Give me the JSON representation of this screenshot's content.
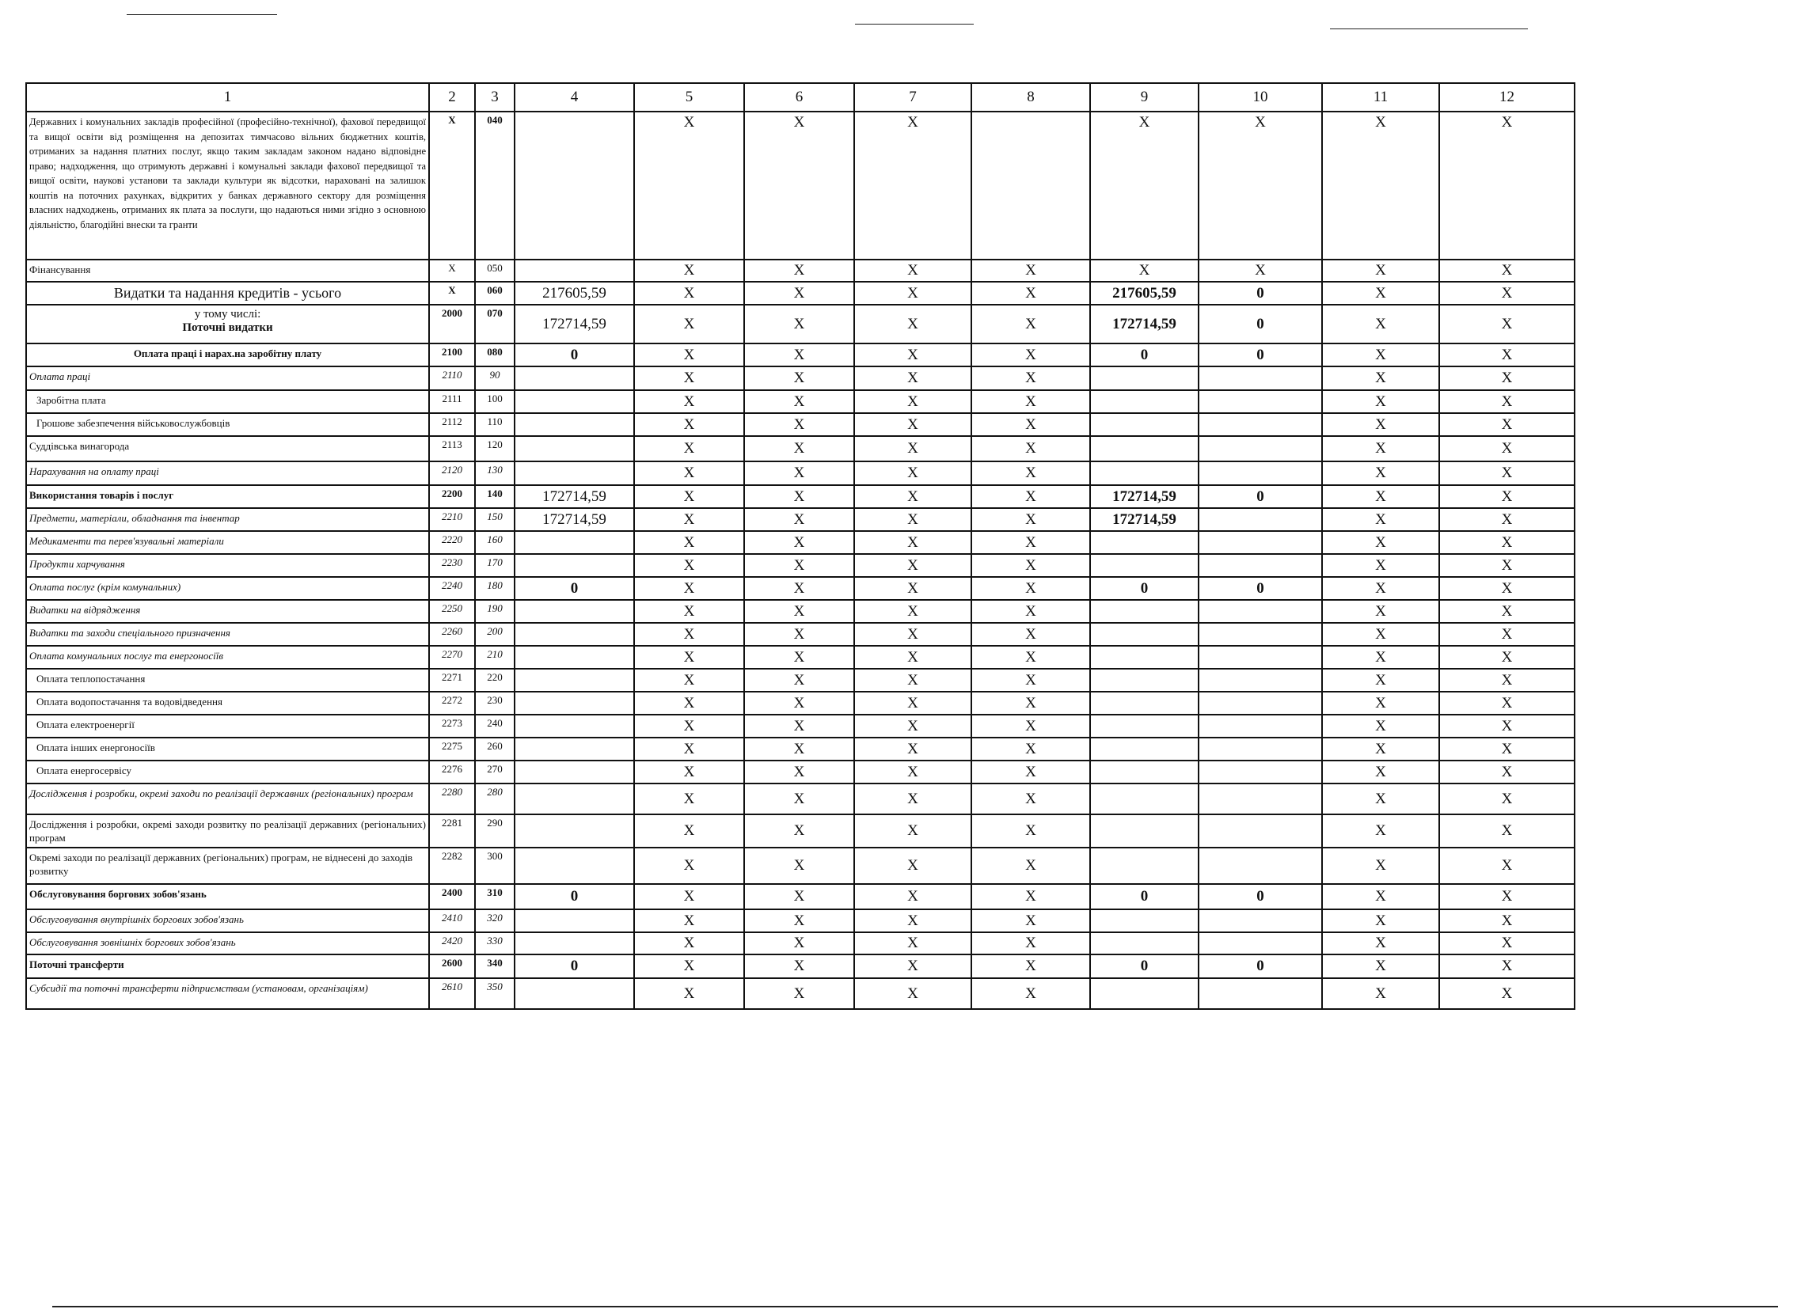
{
  "header": [
    "1",
    "2",
    "3",
    "4",
    "5",
    "6",
    "7",
    "8",
    "9",
    "10",
    "11",
    "12"
  ],
  "rows": [
    {
      "label": "Державних і комунальних закладів професійної (професійно-технічної), фахової передвищої та вищої освіти від розміщення на депозитах тимчасово вільних бюджетних коштів, отриманих за надання платних послуг, якщо таким закладам законом надано відповідне право; надходження, що отримують державні і комунальні заклади фахової передвищої та вищої освіти, наукові установи та заклади культури як відсотки, нараховані на залишок коштів на поточних рахунках, відкритих у банках державного сектору для розміщення власних надходжень, отриманих як плата за послуги, що надаються ними згідно з основною діяльністю, благодійні внески та гранти",
      "style": "justify",
      "c2": "X",
      "c3": "040",
      "vals": [
        "",
        "X",
        "X",
        "X",
        "",
        "X",
        "X",
        "X",
        "X"
      ]
    },
    {
      "label": "Фінансування",
      "style": "normal",
      "c2": "X",
      "c3": "050",
      "vals": [
        "",
        "X",
        "X",
        "X",
        "X",
        "X",
        "X",
        "X",
        "X"
      ]
    },
    {
      "label": "Видатки та надання кредитів - усього",
      "style": "big",
      "c2": "X",
      "c3": "060",
      "vals": [
        "217605,59",
        "X",
        "X",
        "X",
        "X",
        "217605,59",
        "0",
        "X",
        "X"
      ]
    },
    {
      "label": "у тому числі:",
      "sublabel": "Поточні видатки",
      "style": "split",
      "c2": "2000",
      "c3": "070",
      "vals": [
        "172714,59",
        "X",
        "X",
        "X",
        "X",
        "172714,59",
        "0",
        "X",
        "X"
      ]
    },
    {
      "label": "Оплата праці і нарах.на заробітну плату",
      "style": "bold center",
      "c2": "2100",
      "c3": "080",
      "vals": [
        "0",
        "X",
        "X",
        "X",
        "X",
        "0",
        "0",
        "X",
        "X"
      ]
    },
    {
      "label": "Оплата праці",
      "style": "italic",
      "c2": "2110",
      "c3": "90",
      "vals": [
        "",
        "X",
        "X",
        "X",
        "X",
        "",
        "",
        "X",
        "X"
      ]
    },
    {
      "label": "Заробітна плата",
      "style": "normal indent",
      "c2": "2111",
      "c3": "100",
      "vals": [
        "",
        "X",
        "X",
        "X",
        "X",
        "",
        "",
        "X",
        "X"
      ]
    },
    {
      "label": "Грошове забезпечення військовослужбовців",
      "style": "normal indent",
      "c2": "2112",
      "c3": "110",
      "vals": [
        "",
        "X",
        "X",
        "X",
        "X",
        "",
        "",
        "X",
        "X"
      ]
    },
    {
      "label": "Суддівська винагорода",
      "style": "normal",
      "c2": "2113",
      "c3": "120",
      "vals": [
        "",
        "X",
        "X",
        "X",
        "X",
        "",
        "",
        "X",
        "X"
      ]
    },
    {
      "label": "Нарахування на оплату праці",
      "style": "italic",
      "c2": "2120",
      "c3": "130",
      "vals": [
        "",
        "X",
        "X",
        "X",
        "X",
        "",
        "",
        "X",
        "X"
      ]
    },
    {
      "label": "Використання товарів і послуг",
      "style": "bold",
      "c2": "2200",
      "c3": "140",
      "vals": [
        "172714,59",
        "X",
        "X",
        "X",
        "X",
        "172714,59",
        "0",
        "X",
        "X"
      ]
    },
    {
      "label": "Предмети, матеріали, обладнання та інвентар",
      "style": "italic",
      "c2": "2210",
      "c3": "150",
      "vals": [
        "172714,59",
        "X",
        "X",
        "X",
        "X",
        "172714,59",
        "",
        "X",
        "X"
      ]
    },
    {
      "label": "Медикаменти та перев'язувальні матеріали",
      "style": "italic",
      "c2": "2220",
      "c3": "160",
      "vals": [
        "",
        "X",
        "X",
        "X",
        "X",
        "",
        "",
        "X",
        "X"
      ]
    },
    {
      "label": "Продукти харчування",
      "style": "italic",
      "c2": "2230",
      "c3": "170",
      "vals": [
        "",
        "X",
        "X",
        "X",
        "X",
        "",
        "",
        "X",
        "X"
      ]
    },
    {
      "label": "Оплата послуг (крім комунальних)",
      "style": "italic",
      "c2": "2240",
      "c3": "180",
      "vals": [
        "0",
        "X",
        "X",
        "X",
        "X",
        "0",
        "0",
        "X",
        "X"
      ]
    },
    {
      "label": "Видатки на відрядження",
      "style": "italic",
      "c2": "2250",
      "c3": "190",
      "vals": [
        "",
        "X",
        "X",
        "X",
        "X",
        "",
        "",
        "X",
        "X"
      ]
    },
    {
      "label": "Видатки та заходи спеціального призначення",
      "style": "italic",
      "c2": "2260",
      "c3": "200",
      "vals": [
        "",
        "X",
        "X",
        "X",
        "X",
        "",
        "",
        "X",
        "X"
      ]
    },
    {
      "label": "Оплата комунальних послуг та енергоносіїв",
      "style": "italic",
      "c2": "2270",
      "c3": "210",
      "vals": [
        "",
        "X",
        "X",
        "X",
        "X",
        "",
        "",
        "X",
        "X"
      ]
    },
    {
      "label": "Оплата теплопостачання",
      "style": "normal indent",
      "c2": "2271",
      "c3": "220",
      "vals": [
        "",
        "X",
        "X",
        "X",
        "X",
        "",
        "",
        "X",
        "X"
      ]
    },
    {
      "label": "Оплата водопостачання та водовідведення",
      "style": "normal indent",
      "c2": "2272",
      "c3": "230",
      "vals": [
        "",
        "X",
        "X",
        "X",
        "X",
        "",
        "",
        "X",
        "X"
      ]
    },
    {
      "label": "Оплата електроенергії",
      "style": "normal indent",
      "c2": "2273",
      "c3": "240",
      "vals": [
        "",
        "X",
        "X",
        "X",
        "X",
        "",
        "",
        "X",
        "X"
      ]
    },
    {
      "label": "Оплата інших енергоносіїв",
      "style": "normal indent",
      "c2": "2275",
      "c3": "260",
      "vals": [
        "",
        "X",
        "X",
        "X",
        "X",
        "",
        "",
        "X",
        "X"
      ]
    },
    {
      "label": "Оплата енергосервісу",
      "style": "normal indent",
      "c2": "2276",
      "c3": "270",
      "vals": [
        "",
        "X",
        "X",
        "X",
        "X",
        "",
        "",
        "X",
        "X"
      ]
    },
    {
      "label": "Дослідження і розробки, окремі заходи по реалізації державних (регіональних) програм",
      "style": "italic justify2",
      "c2": "2280",
      "c3": "280",
      "vals": [
        "",
        "X",
        "X",
        "X",
        "X",
        "",
        "",
        "X",
        "X"
      ]
    },
    {
      "label": "Дослідження і розробки, окремі заходи розвитку по реалізації державних (регіональних) програм",
      "style": "normal justify2",
      "c2": "2281",
      "c3": "290",
      "vals": [
        "",
        "X",
        "X",
        "X",
        "X",
        "",
        "",
        "X",
        "X"
      ]
    },
    {
      "label": "Окремі заходи по реалізації державних (регіональних) програм, не віднесені до заходів розвитку",
      "style": "normal",
      "c2": "2282",
      "c3": "300",
      "vals": [
        "",
        "X",
        "X",
        "X",
        "X",
        "",
        "",
        "X",
        "X"
      ]
    },
    {
      "label": "Обслуговування боргових зобов'язань",
      "style": "bold",
      "c2": "2400",
      "c3": "310",
      "vals": [
        "0",
        "X",
        "X",
        "X",
        "X",
        "0",
        "0",
        "X",
        "X"
      ]
    },
    {
      "label": "Обслуговування внутрішніх боргових зобов'язань",
      "style": "italic",
      "c2": "2410",
      "c3": "320",
      "vals": [
        "",
        "X",
        "X",
        "X",
        "X",
        "",
        "",
        "X",
        "X"
      ]
    },
    {
      "label": "Обслуговування зовнішніх боргових зобов'язань",
      "style": "italic",
      "c2": "2420",
      "c3": "330",
      "vals": [
        "",
        "X",
        "X",
        "X",
        "X",
        "",
        "",
        "X",
        "X"
      ]
    },
    {
      "label": "Поточні трансферти",
      "style": "bold",
      "c2": "2600",
      "c3": "340",
      "vals": [
        "0",
        "X",
        "X",
        "X",
        "X",
        "0",
        "0",
        "X",
        "X"
      ]
    },
    {
      "label": "Субсидії та поточні трансферти підприємствам (установам, організаціям)",
      "style": "italic",
      "c2": "2610",
      "c3": "350",
      "vals": [
        "",
        "X",
        "X",
        "X",
        "X",
        "",
        "",
        "X",
        "X"
      ]
    }
  ]
}
